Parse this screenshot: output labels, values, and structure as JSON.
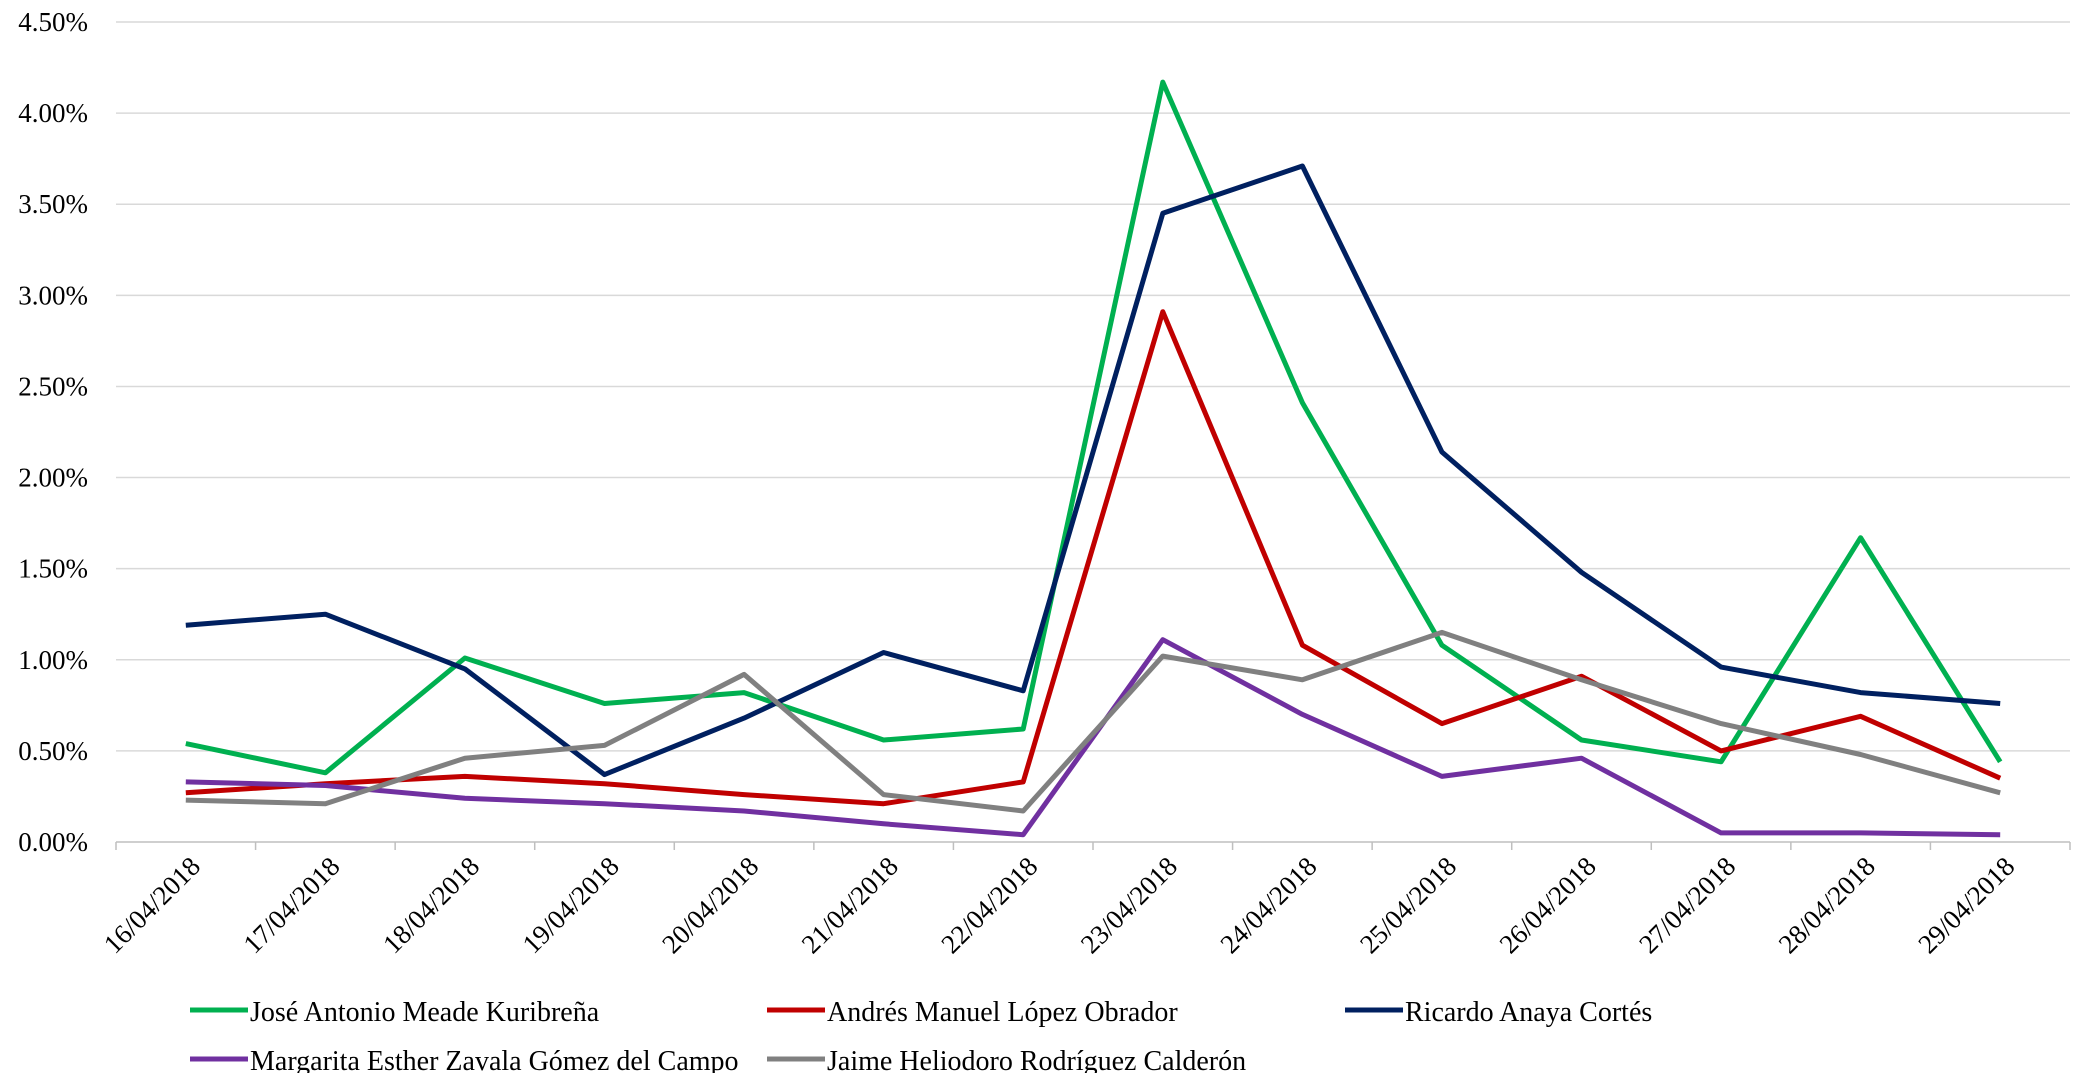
{
  "chart_data": {
    "type": "line",
    "title": "",
    "xlabel": "",
    "ylabel": "",
    "categories": [
      "16/04/2018",
      "17/04/2018",
      "18/04/2018",
      "19/04/2018",
      "20/04/2018",
      "21/04/2018",
      "22/04/2018",
      "23/04/2018",
      "24/04/2018",
      "25/04/2018",
      "26/04/2018",
      "27/04/2018",
      "28/04/2018",
      "29/04/2018"
    ],
    "ylim": [
      0,
      0.045
    ],
    "yticks": [
      0,
      0.005,
      0.01,
      0.015,
      0.02,
      0.025,
      0.03,
      0.035,
      0.04,
      0.045
    ],
    "ytick_labels": [
      "0.00%",
      "0.50%",
      "1.00%",
      "1.50%",
      "2.00%",
      "2.50%",
      "3.00%",
      "3.50%",
      "4.00%",
      "4.50%"
    ],
    "grid": true,
    "legend_position": "bottom",
    "series": [
      {
        "name": "José Antonio Meade Kuribreña",
        "color": "#00b050",
        "values": [
          0.0054,
          0.0038,
          0.0101,
          0.0076,
          0.0082,
          0.0056,
          0.0062,
          0.0417,
          0.0241,
          0.0108,
          0.0056,
          0.0044,
          0.0167,
          0.0044
        ]
      },
      {
        "name": "Andrés Manuel López Obrador",
        "color": "#c00000",
        "values": [
          0.0027,
          0.0032,
          0.0036,
          0.0032,
          0.0026,
          0.0021,
          0.0033,
          0.0291,
          0.0108,
          0.0065,
          0.0091,
          0.005,
          0.0069,
          0.0035
        ]
      },
      {
        "name": "Ricardo Anaya Cortés",
        "color": "#002060",
        "values": [
          0.0119,
          0.0125,
          0.0095,
          0.0037,
          0.0068,
          0.0104,
          0.0083,
          0.0345,
          0.0371,
          0.0214,
          0.0148,
          0.0096,
          0.0082,
          0.0076
        ]
      },
      {
        "name": "Margarita Esther Zavala Gómez del Campo",
        "color": "#7030a0",
        "values": [
          0.0033,
          0.0031,
          0.0024,
          0.0021,
          0.0017,
          0.001,
          0.0004,
          0.0111,
          0.007,
          0.0036,
          0.0046,
          0.0005,
          0.0005,
          0.0004
        ]
      },
      {
        "name": "Jaime Heliodoro Rodríguez Calderón",
        "color": "#808080",
        "values": [
          0.0023,
          0.0021,
          0.0046,
          0.0053,
          0.0092,
          0.0026,
          0.0017,
          0.0102,
          0.0089,
          0.0115,
          0.0089,
          0.0065,
          0.0048,
          0.0027
        ]
      }
    ]
  }
}
